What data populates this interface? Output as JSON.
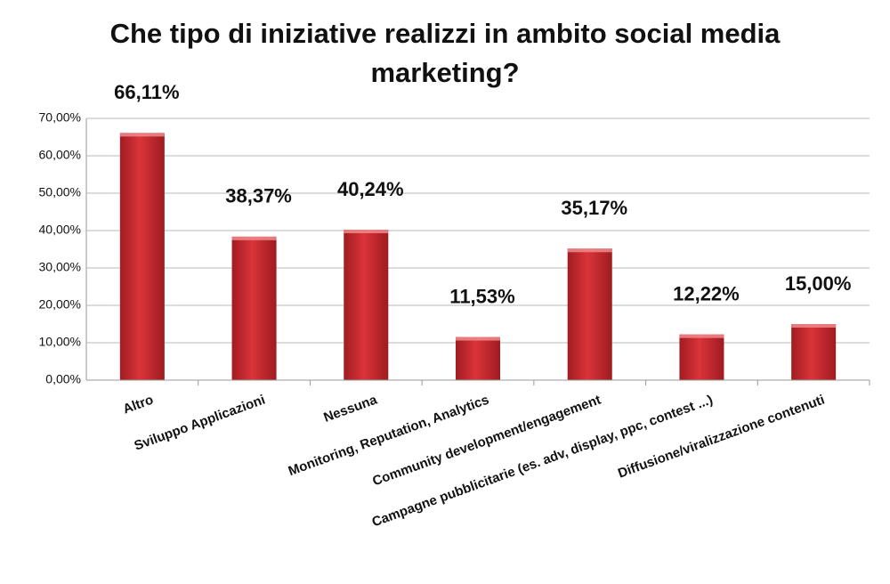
{
  "chart_data": {
    "type": "bar",
    "title": "Che tipo di iniziative realizzi in ambito social media marketing?",
    "categories": [
      "Altro",
      "Sviluppo Applicazioni",
      "Nessuna",
      "Monitoring, Reputation, Analytics",
      "Community development/engagement",
      "Campagne pubblicitarie (es. adv, display, ppc, contest ...)",
      "Diffusione/viralizzazione contenuti"
    ],
    "values": [
      66.11,
      38.37,
      40.24,
      11.53,
      35.17,
      12.22,
      15.0
    ],
    "value_labels": [
      "66,11%",
      "38,37%",
      "40,24%",
      "11,53%",
      "35,17%",
      "12,22%",
      "15,00%"
    ],
    "color": "#c8282d",
    "ylim": [
      0,
      70
    ],
    "yticks": [
      {
        "value": 0,
        "label": "0,00%"
      },
      {
        "value": 10,
        "label": "10,00%"
      },
      {
        "value": 20,
        "label": "20,00%"
      },
      {
        "value": 30,
        "label": "30,00%"
      },
      {
        "value": 40,
        "label": "40,00%"
      },
      {
        "value": 50,
        "label": "50,00%"
      },
      {
        "value": 60,
        "label": "60,00%"
      },
      {
        "value": 70,
        "label": "70,00%"
      }
    ],
    "grid": true
  }
}
